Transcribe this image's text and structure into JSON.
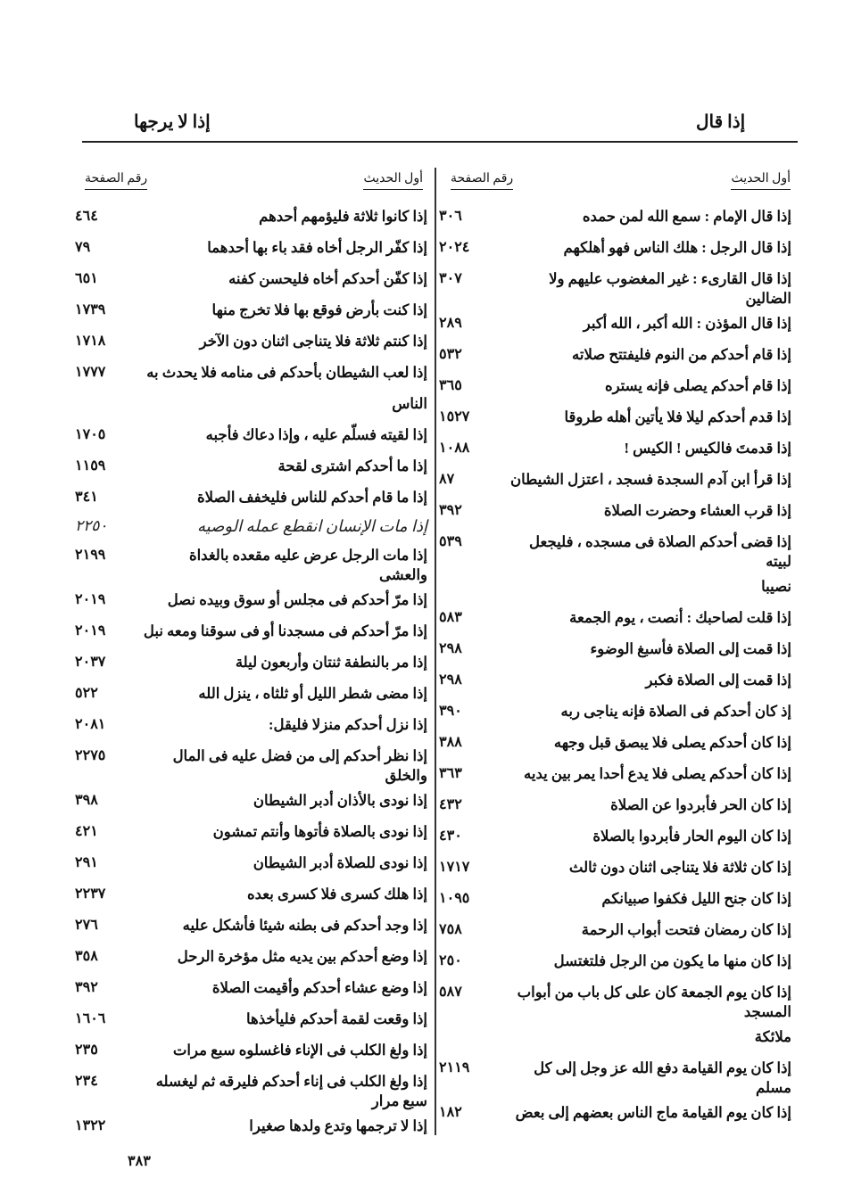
{
  "header": {
    "right_title": "إذا قال",
    "left_title": "إذا لا يرجها"
  },
  "columns": {
    "right": {
      "head_text": "أول الحديث",
      "head_page": "رقم الصفحة",
      "lines": [
        {
          "text": "إذا قال الإمام : سمع الله لمن حمده",
          "page": "٣٠٦"
        },
        {
          "text": "إذا قال الرجل : هلك الناس فهو أهلكهم",
          "page": "٢٠٢٤"
        },
        {
          "text": "إذا قال القارىء : غير المغضوب عليهم ولا الضالين",
          "page": "٣٠٧"
        },
        {
          "text": "إذا قال المؤذن : الله أكبر ، الله أكبر",
          "page": "٢٨٩"
        },
        {
          "text": "إذا قام أحدكم من النوم فليفتتح صلاته",
          "page": "٥٣٢"
        },
        {
          "text": "إذا قام أحدكم يصلى فإنه يستره",
          "page": "٣٦٥"
        },
        {
          "text": "إذا قدم أحدكم ليلا فلا يأتين أهله طروقا",
          "page": "١٥٢٧"
        },
        {
          "text": "إذا قدمتَ فالكيس ! الكيس !",
          "page": "١٠٨٨"
        },
        {
          "text": "إذا قرأ ابن آدم السجدة فسجد ، اعتزل الشيطان",
          "page": "٨٧"
        },
        {
          "text": "إذا قرب العشاء وحضرت الصلاة",
          "page": "٣٩٢"
        },
        {
          "text": "إذا قضى أحدكم الصلاة فى مسجده ، فليجعل لبيته",
          "page": "٥٣٩"
        },
        {
          "text": "نصيبا",
          "page": ""
        },
        {
          "text": "إذا قلت لصاحبك : أنصت ، يوم الجمعة",
          "page": "٥٨٣"
        },
        {
          "text": "إذا قمت إلى الصلاة فأسبغ الوضوء",
          "page": "٢٩٨"
        },
        {
          "text": "إذا قمت إلى الصلاة فكبر",
          "page": "٢٩٨"
        },
        {
          "text": "إذ كان أحدكم فى الصلاة فإنه يناجى ربه",
          "page": "٣٩٠"
        },
        {
          "text": "إذا كان أحدكم يصلى فلا يبصق قبل وجهه",
          "page": "٣٨٨"
        },
        {
          "text": "إذا كان أحدكم يصلى فلا يدع أحدا يمر بين يديه",
          "page": "٣٦٣"
        },
        {
          "text": "إذا كان الحر فأبردوا عن الصلاة",
          "page": "٤٣٢"
        },
        {
          "text": "إذا كان اليوم الحار فأبردوا بالصلاة",
          "page": "٤٣٠"
        },
        {
          "text": "إذا كان ثلاثة فلا يتناجى اثنان دون ثالث",
          "page": "١٧١٧"
        },
        {
          "text": "إذا كان جنح الليل فكفوا صبيانكم",
          "page": "١٠٩٥"
        },
        {
          "text": "إذا كان رمضان فتحت أبواب الرحمة",
          "page": "٧٥٨"
        },
        {
          "text": "إذا كان منها ما يكون من الرجل فلتغتسل",
          "page": "٢٥٠"
        },
        {
          "text": "إذا كان يوم الجمعة كان على كل باب من أبواب المسجد",
          "page": "٥٨٧"
        },
        {
          "text": "ملائكة",
          "page": ""
        },
        {
          "text": "إذا كان يوم القيامة دفع الله عز وجل إلى كل مسلم",
          "page": "٢١١٩"
        },
        {
          "text": "إذا كان يوم القيامة ماج الناس بعضهم إلى بعض",
          "page": "١٨٢"
        }
      ]
    },
    "left": {
      "head_text": "أول الحديث",
      "head_page": "رقم الصفحة",
      "lines": [
        {
          "text": "إذا كانوا ثلاثة فليؤمهم أحدهم",
          "page": "٤٦٤"
        },
        {
          "text": "إذا كفّر الرجل أخاه فقد باء بها أحدهما",
          "page": "٧٩"
        },
        {
          "text": "إذا كفّن أحدكم أخاه فليحسن كفنه",
          "page": "٦٥١"
        },
        {
          "text": "إذا كنت بأرض فوقع بها فلا تخرج منها",
          "page": "١٧٣٩"
        },
        {
          "text": "إذا كنتم ثلاثة فلا يتناجى اثنان دون الآخر",
          "page": "١٧١٨"
        },
        {
          "text": "إذا لعب الشيطان بأحدكم فى منامه فلا يحدث به",
          "page": "١٧٧٧"
        },
        {
          "text": "الناس",
          "page": ""
        },
        {
          "text": "إذا لقيته فسلّم عليه ، وإذا دعاك فأجبه",
          "page": "١٧٠٥"
        },
        {
          "text": "إذا ما أحدكم اشترى لقحة",
          "page": "١١٥٩"
        },
        {
          "text": "إذا ما قام أحدكم للناس فليخفف الصلاة",
          "page": "٣٤١"
        },
        {
          "text": "إذا مات الرجل عرض عليه مقعده بالغداة والعشى",
          "page": "٢١٩٩"
        },
        {
          "text": "إذا مرّ أحدكم فى مجلس أو سوق وبيده نصل",
          "page": "٢٠١٩"
        },
        {
          "text": "إذا مرّ أحدكم فى مسجدنا أو فى سوقنا ومعه نبل",
          "page": "٢٠١٩"
        },
        {
          "text": "إذا مر بالنطفة ثنتان وأربعون ليلة",
          "page": "٢٠٣٧"
        },
        {
          "text": "إذا مضى شطر الليل أو ثلثاه ، ينزل الله",
          "page": "٥٢٢"
        },
        {
          "text": "إذا نزل أحدكم منزلا فليقل:",
          "page": "٢٠٨١"
        },
        {
          "text": "إذا نظر أحدكم إلى من فضل عليه فى المال والخلق",
          "page": "٢٢٧٥"
        },
        {
          "text": "إذا نودى بالأذان أدبر الشيطان",
          "page": "٣٩٨"
        },
        {
          "text": "إذا نودى بالصلاة فأتوها وأنتم تمشون",
          "page": "٤٢١"
        },
        {
          "text": "إذا نودى للصلاة أدبر الشيطان",
          "page": "٢٩١"
        },
        {
          "text": "إذا هلك كسرى فلا كسرى بعده",
          "page": "٢٢٣٧"
        },
        {
          "text": "إذا وجد أحدكم فى بطنه شيئا فأشكل عليه",
          "page": "٢٧٦"
        },
        {
          "text": "إذا وضع أحدكم بين يديه مثل مؤخرة الرحل",
          "page": "٣٥٨"
        },
        {
          "text": "إذا وضع عشاء أحدكم وأقيمت الصلاة",
          "page": "٣٩٢"
        },
        {
          "text": "إذا وقعت لقمة أحدكم فليأخذها",
          "page": "١٦٠٦"
        },
        {
          "text": "إذا ولغ الكلب فى الإناء فاغسلوه سبع مرات",
          "page": "٢٣٥"
        },
        {
          "text": "إذا ولغ الكلب فى إناء أحدكم فليرقه ثم ليغسله سبع مرار",
          "page": "٢٣٤"
        },
        {
          "text": "إذا لا ترجمها وتدع ولدها صغيرا",
          "page": "١٣٢٢"
        }
      ]
    }
  },
  "handwritten_note": {
    "text": "إذا مات الإنسان انقطع عمله الوصيه",
    "page": "٢٢٥٠"
  },
  "page_number": "٣٨٣"
}
